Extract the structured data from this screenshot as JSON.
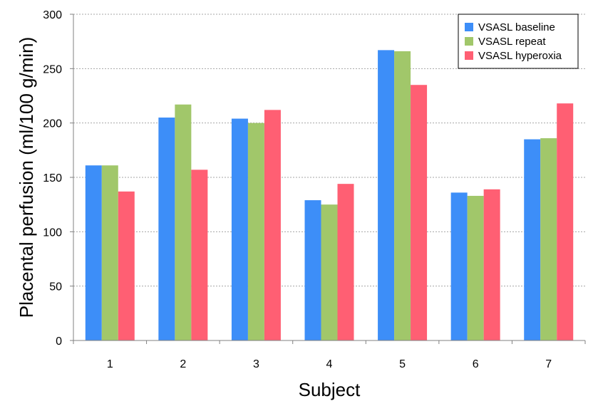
{
  "chart_data": {
    "type": "bar",
    "categories": [
      "1",
      "2",
      "3",
      "4",
      "5",
      "6",
      "7"
    ],
    "series": [
      {
        "name": "VSASL baseline",
        "color": "#3d8ef8",
        "values": [
          161,
          205,
          204,
          129,
          267,
          136,
          185
        ]
      },
      {
        "name": "VSASL repeat",
        "color": "#a1c76a",
        "values": [
          161,
          217,
          200,
          125,
          266,
          133,
          186
        ]
      },
      {
        "name": "VSASL hyperoxia",
        "color": "#ff5f73",
        "values": [
          137,
          157,
          212,
          144,
          235,
          139,
          218
        ]
      }
    ],
    "xlabel": "Subject",
    "ylabel": "Placental perfusion (ml/100 g/min)",
    "ylim": [
      0,
      300
    ],
    "yticks": [
      0,
      50,
      100,
      150,
      200,
      250,
      300
    ],
    "grid": true,
    "legend_position": "top-right"
  }
}
